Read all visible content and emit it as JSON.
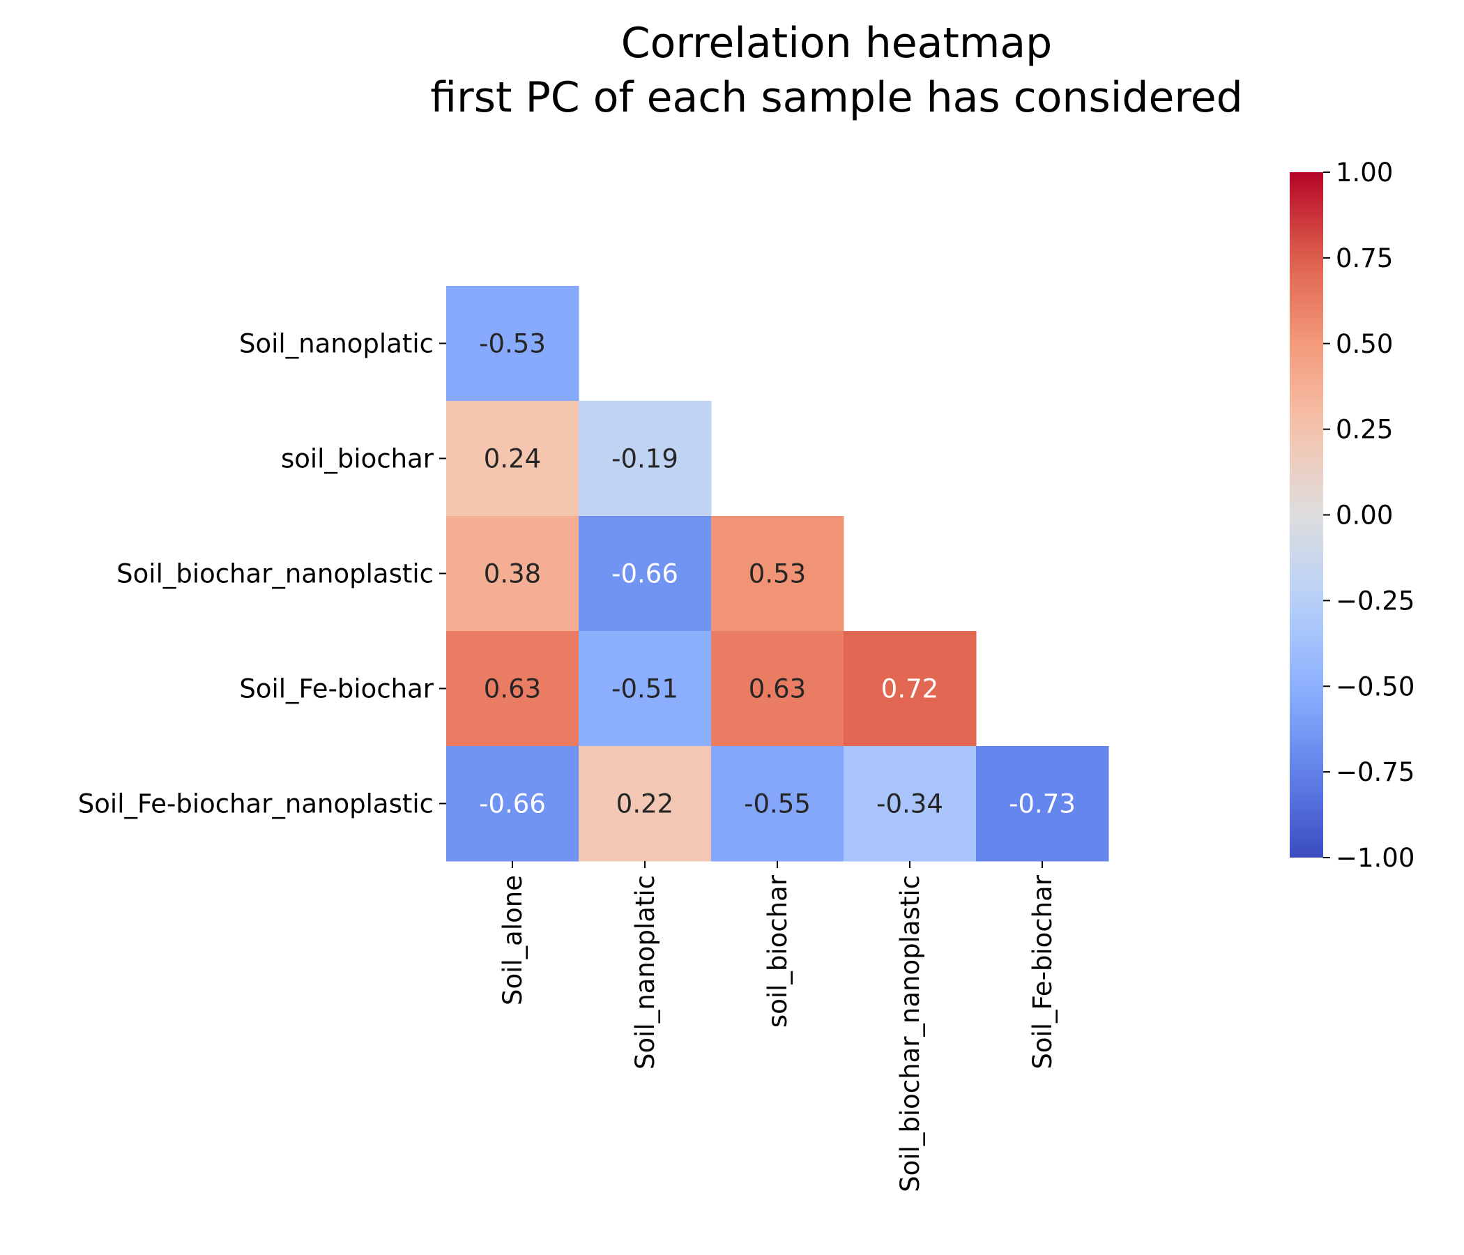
{
  "chart_data": {
    "type": "heatmap",
    "title": [
      "Correlation heatmap",
      "first PC of each sample has considered"
    ],
    "x_labels": [
      "Soil_alone",
      "Soil_nanoplatic",
      "soil_biochar",
      "Soil_biochar_nanoplastic",
      "Soil_Fe-biochar"
    ],
    "y_labels": [
      "Soil_nanoplatic",
      "soil_biochar",
      "Soil_biochar_nanoplastic",
      "Soil_Fe-biochar",
      "Soil_Fe-biochar_nanoplastic"
    ],
    "values": [
      [
        -0.53,
        null,
        null,
        null,
        null
      ],
      [
        0.24,
        -0.19,
        null,
        null,
        null
      ],
      [
        0.38,
        -0.66,
        0.53,
        null,
        null
      ],
      [
        0.63,
        -0.51,
        0.63,
        0.72,
        null
      ],
      [
        -0.66,
        0.22,
        -0.55,
        -0.34,
        -0.73
      ]
    ],
    "value_labels": [
      [
        "-0.53",
        "",
        "",
        "",
        ""
      ],
      [
        "0.24",
        "-0.19",
        "",
        "",
        ""
      ],
      [
        "0.38",
        "-0.66",
        "0.53",
        "",
        ""
      ],
      [
        "0.63",
        "-0.51",
        "0.63",
        "0.72",
        ""
      ],
      [
        "-0.66",
        "0.22",
        "-0.55",
        "-0.34",
        "-0.73"
      ]
    ],
    "colormap": "coolwarm",
    "vmin": -1.0,
    "vmax": 1.0,
    "colorbar_ticks": [
      1.0,
      0.75,
      0.5,
      0.25,
      0.0,
      -0.25,
      -0.5,
      -0.75,
      -1.0
    ],
    "colorbar_tick_labels": [
      "1.00",
      "0.75",
      "0.50",
      "0.25",
      "0.00",
      "−0.25",
      "−0.50",
      "−0.75",
      "−1.00"
    ],
    "mask": "upper-triangle",
    "grid": false
  }
}
